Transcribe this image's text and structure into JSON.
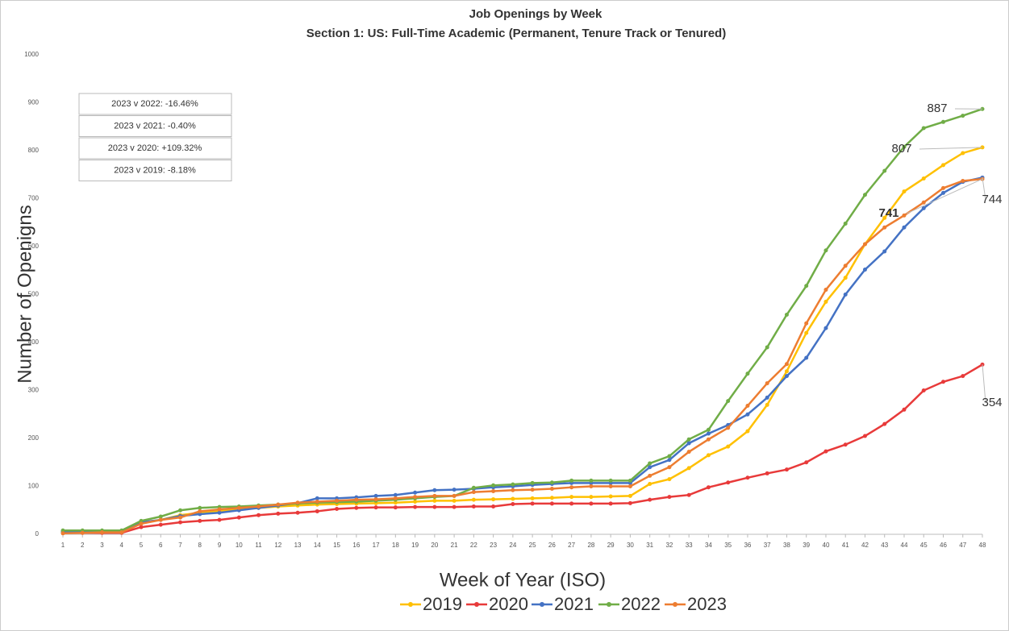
{
  "chart_data": {
    "type": "line",
    "title": "Job Openings by Week",
    "subtitle": "Section 1: US: Full-Time Academic (Permanent, Tenure Track or Tenured)",
    "x_label": "Week of Year (ISO)",
    "y_label": "Number of Openigns",
    "x": [
      1,
      2,
      3,
      4,
      5,
      6,
      7,
      8,
      9,
      10,
      11,
      12,
      13,
      14,
      15,
      16,
      17,
      18,
      19,
      20,
      21,
      22,
      23,
      24,
      25,
      26,
      27,
      28,
      29,
      30,
      31,
      32,
      33,
      34,
      35,
      36,
      37,
      38,
      39,
      40,
      41,
      42,
      43,
      44,
      45,
      46,
      47,
      48
    ],
    "xlim": [
      1,
      48
    ],
    "ylim": [
      0,
      1000
    ],
    "yticks": [
      0,
      100,
      200,
      300,
      400,
      500,
      600,
      700,
      800,
      900,
      1000
    ],
    "grid": false,
    "legend": "bottom",
    "series": [
      {
        "name": "2019",
        "color": "#ffc000",
        "values": [
          5,
          5,
          5,
          5,
          25,
          30,
          40,
          45,
          48,
          52,
          55,
          58,
          60,
          62,
          63,
          64,
          65,
          66,
          68,
          70,
          70,
          72,
          73,
          74,
          75,
          76,
          78,
          78,
          79,
          80,
          105,
          115,
          138,
          165,
          183,
          215,
          270,
          340,
          420,
          485,
          535,
          605,
          660,
          715,
          742,
          770,
          795,
          807
        ]
      },
      {
        "name": "2020",
        "color": "#e83a3a",
        "values": [
          3,
          3,
          3,
          3,
          15,
          20,
          25,
          28,
          30,
          35,
          40,
          43,
          45,
          48,
          53,
          55,
          56,
          56,
          57,
          57,
          57,
          58,
          58,
          63,
          64,
          64,
          64,
          64,
          64,
          65,
          72,
          78,
          82,
          98,
          108,
          118,
          127,
          135,
          150,
          173,
          187,
          205,
          230,
          260,
          300,
          318,
          330,
          354
        ]
      },
      {
        "name": "2021",
        "color": "#4472c4",
        "values": [
          5,
          5,
          5,
          5,
          25,
          30,
          38,
          42,
          45,
          50,
          55,
          60,
          65,
          75,
          75,
          77,
          80,
          82,
          87,
          92,
          93,
          95,
          98,
          100,
          103,
          105,
          107,
          107,
          107,
          107,
          140,
          155,
          190,
          210,
          228,
          250,
          285,
          330,
          368,
          430,
          500,
          552,
          590,
          640,
          680,
          712,
          735,
          744
        ]
      },
      {
        "name": "2022",
        "color": "#70ad47",
        "values": [
          8,
          8,
          8,
          8,
          28,
          37,
          50,
          55,
          57,
          58,
          60,
          62,
          64,
          66,
          67,
          68,
          70,
          72,
          75,
          78,
          80,
          97,
          102,
          104,
          107,
          108,
          112,
          112,
          112,
          112,
          148,
          163,
          198,
          218,
          278,
          335,
          390,
          458,
          518,
          592,
          648,
          708,
          758,
          808,
          847,
          860,
          873,
          887
        ]
      },
      {
        "name": "2023",
        "color": "#ed7d31",
        "values": [
          2,
          3,
          4,
          4,
          22,
          30,
          35,
          48,
          52,
          55,
          58,
          62,
          66,
          68,
          70,
          72,
          73,
          75,
          78,
          80,
          80,
          88,
          90,
          92,
          93,
          95,
          98,
          100,
          100,
          100,
          122,
          140,
          172,
          198,
          222,
          268,
          315,
          355,
          440,
          510,
          560,
          605,
          640,
          665,
          692,
          722,
          737,
          741
        ]
      }
    ],
    "annotations": [
      "2023 v 2022: -16.46%",
      "2023 v 2021: -0.40%",
      "2023 v 2020: +109.32%",
      "2023 v 2019: -8.18%"
    ]
  }
}
